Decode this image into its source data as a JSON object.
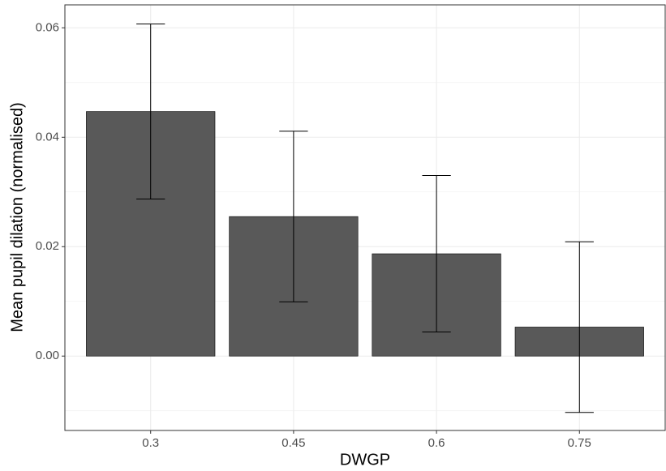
{
  "chart_data": {
    "type": "bar",
    "x_label": "DWGP",
    "y_label": "Mean pupil dilation (normalised)",
    "categories": [
      "0.3",
      "0.45",
      "0.6",
      "0.75"
    ],
    "values": [
      0.0447,
      0.0255,
      0.0187,
      0.0053
    ],
    "errors": [
      0.016,
      0.0156,
      0.0143,
      0.0156
    ],
    "color": "#595959",
    "ylim": [
      -0.0136,
      0.0642
    ],
    "yticks": [
      {
        "value": 0,
        "label": "0.00"
      },
      {
        "value": 0.02,
        "label": "0.02"
      },
      {
        "value": 0.04,
        "label": "0.04"
      },
      {
        "value": 0.06,
        "label": "0.06"
      }
    ],
    "grid": true
  }
}
